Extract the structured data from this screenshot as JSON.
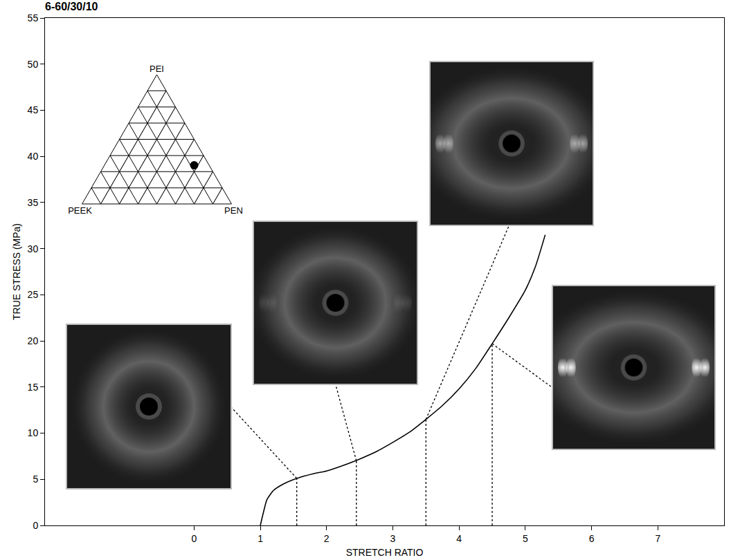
{
  "chart_data": {
    "type": "line",
    "title": "6-60/30/10",
    "x_label": "STRETCH RATIO",
    "y_label": "TRUE STRESS (MPa)",
    "x": [
      1.0,
      1.05,
      1.1,
      1.2,
      1.35,
      1.55,
      1.8,
      2.0,
      2.25,
      2.5,
      2.75,
      3.0,
      3.25,
      3.5,
      3.75,
      4.0,
      4.25,
      4.5,
      4.75,
      5.0,
      5.15,
      5.3
    ],
    "values": [
      0,
      1.5,
      2.8,
      3.8,
      4.5,
      5.1,
      5.6,
      5.9,
      6.5,
      7.2,
      8.0,
      9.0,
      10.1,
      11.5,
      13.0,
      14.8,
      17.0,
      19.7,
      22.5,
      25.5,
      28.0,
      31.5
    ],
    "color": "#000000",
    "xlim": [
      -2.25,
      8
    ],
    "ylim": [
      0,
      55
    ],
    "xticks": [
      0,
      1,
      2,
      3,
      4,
      5,
      6,
      7
    ],
    "yticks": [
      0,
      5,
      10,
      15,
      20,
      25,
      30,
      35,
      40,
      45,
      50,
      55
    ],
    "grid": false,
    "patterns": [
      {
        "stretch_ratio": 1.55,
        "stress": 5.1
      },
      {
        "stretch_ratio": 2.45,
        "stress": 7.0
      },
      {
        "stretch_ratio": 3.5,
        "stress": 11.5
      },
      {
        "stretch_ratio": 4.5,
        "stress": 19.7
      }
    ],
    "ternary": {
      "vertices": [
        "PEI",
        "PEEK",
        "PEN"
      ],
      "point": [
        30,
        10,
        60
      ]
    }
  }
}
